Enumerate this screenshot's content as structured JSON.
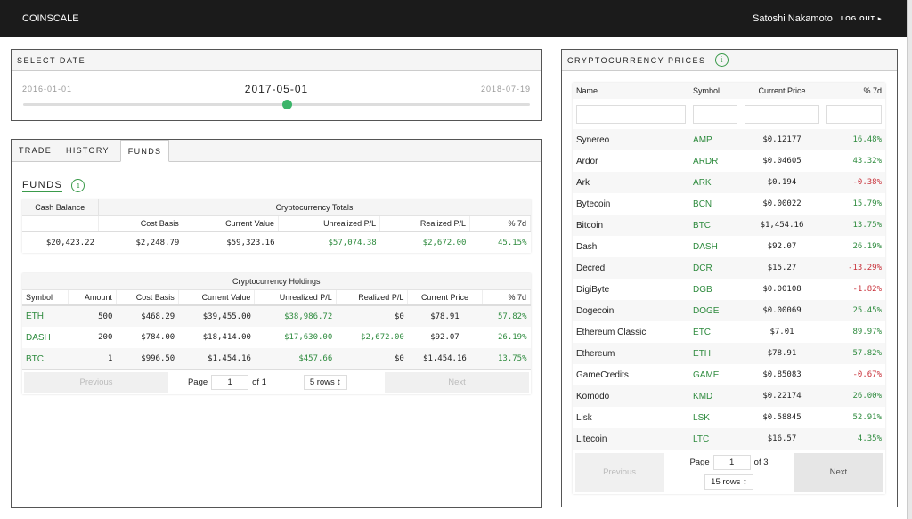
{
  "header": {
    "brand": "COINSCALE",
    "user": "Satoshi Nakamoto",
    "logout": "LOG OUT ▸"
  },
  "date": {
    "title": "SELECT DATE",
    "min": "2016-01-01",
    "max": "2018-07-19",
    "current": "2017-05-01",
    "position": 0.52
  },
  "tabs": [
    "TRADE",
    "HISTORY",
    "FUNDS"
  ],
  "active_tab": "FUNDS",
  "funds": {
    "title": "FUNDS",
    "totals": {
      "group_headers": [
        "Cash Balance",
        "Cryptocurrency Totals"
      ],
      "columns": [
        "",
        "Cost Basis",
        "Current Value",
        "Unrealized P/L",
        "Realized P/L",
        "% 7d"
      ],
      "row": [
        "$20,423.22",
        "$2,248.79",
        "$59,323.16",
        "$57,074.38",
        "$2,672.00",
        "45.15%"
      ]
    },
    "holdings": {
      "title": "Cryptocurrency Holdings",
      "columns": [
        "Symbol",
        "Amount",
        "Cost Basis",
        "Current Value",
        "Unrealized P/L",
        "Realized P/L",
        "Current Price",
        "% 7d"
      ],
      "rows": [
        [
          "ETH",
          "500",
          "$468.29",
          "$39,455.00",
          "$38,986.72",
          "$0",
          "$78.91",
          "57.82%"
        ],
        [
          "DASH",
          "200",
          "$784.00",
          "$18,414.00",
          "$17,630.00",
          "$2,672.00",
          "$92.07",
          "26.19%"
        ],
        [
          "BTC",
          "1",
          "$996.50",
          "$1,454.16",
          "$457.66",
          "$0",
          "$1,454.16",
          "13.75%"
        ]
      ],
      "pager": {
        "previous": "Previous",
        "page_label": "Page",
        "page": "1",
        "of": "of 1",
        "rows": "5 rows ↕",
        "next": "Next"
      }
    }
  },
  "prices": {
    "title": "CRYPTOCURRENCY PRICES",
    "columns": [
      "Name",
      "Symbol",
      "Current Price",
      "% 7d"
    ],
    "rows": [
      [
        "Synereo",
        "AMP",
        "$0.12177",
        "16.48%"
      ],
      [
        "Ardor",
        "ARDR",
        "$0.04605",
        "43.32%"
      ],
      [
        "Ark",
        "ARK",
        "$0.194",
        "-0.38%"
      ],
      [
        "Bytecoin",
        "BCN",
        "$0.00022",
        "15.79%"
      ],
      [
        "Bitcoin",
        "BTC",
        "$1,454.16",
        "13.75%"
      ],
      [
        "Dash",
        "DASH",
        "$92.07",
        "26.19%"
      ],
      [
        "Decred",
        "DCR",
        "$15.27",
        "-13.29%"
      ],
      [
        "DigiByte",
        "DGB",
        "$0.00108",
        "-1.82%"
      ],
      [
        "Dogecoin",
        "DOGE",
        "$0.00069",
        "25.45%"
      ],
      [
        "Ethereum Classic",
        "ETC",
        "$7.01",
        "89.97%"
      ],
      [
        "Ethereum",
        "ETH",
        "$78.91",
        "57.82%"
      ],
      [
        "GameCredits",
        "GAME",
        "$0.85083",
        "-0.67%"
      ],
      [
        "Komodo",
        "KMD",
        "$0.22174",
        "26.00%"
      ],
      [
        "Lisk",
        "LSK",
        "$0.58845",
        "52.91%"
      ],
      [
        "Litecoin",
        "LTC",
        "$16.57",
        "4.35%"
      ]
    ],
    "pager": {
      "previous": "Previous",
      "page_label": "Page",
      "page": "1",
      "of": "of 3",
      "rows": "15 rows ↕",
      "next": "Next"
    }
  },
  "colors": {
    "positive": "#2e8b3e",
    "negative": "#c8313a",
    "accent": "#3cb56a",
    "header_bg": "#1b1b1b"
  }
}
